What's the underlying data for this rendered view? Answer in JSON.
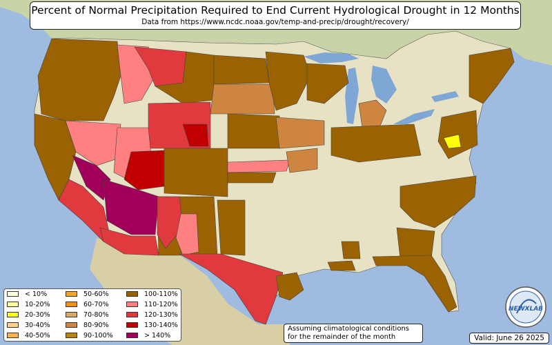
{
  "header": {
    "title": "Percent of Normal Precipitation Required to End Current Hydrological Drought in 12 Months",
    "subtitle": "Data from https://www.ncdc.noaa.gov/temp-and-precip/drought/recovery/"
  },
  "legend": {
    "items": [
      {
        "label": "< 10%",
        "color": "#ffffe0"
      },
      {
        "label": "10-20%",
        "color": "#ffff99"
      },
      {
        "label": "20-30%",
        "color": "#ffff00"
      },
      {
        "label": "30-40%",
        "color": "#ffd18c"
      },
      {
        "label": "40-50%",
        "color": "#ffb347"
      },
      {
        "label": "50-60%",
        "color": "#f5a623"
      },
      {
        "label": "60-70%",
        "color": "#f0901e"
      },
      {
        "label": "70-80%",
        "color": "#d9a76a"
      },
      {
        "label": "80-90%",
        "color": "#cd853f"
      },
      {
        "label": "90-100%",
        "color": "#b8860b"
      },
      {
        "label": "100-110%",
        "color": "#9a6200"
      },
      {
        "label": "110-120%",
        "color": "#ff8080"
      },
      {
        "label": "120-130%",
        "color": "#e0393e"
      },
      {
        "label": "130-140%",
        "color": "#c00000"
      },
      {
        "label": "> 140%",
        "color": "#a0005a"
      }
    ]
  },
  "note": {
    "line1": "Assuming climatological conditions",
    "line2": "for the remainder of the month"
  },
  "valid": "Valid: June 26 2025",
  "logo_text": "NEWXLAB",
  "colors": {
    "ocean": "#9fbbdf",
    "land": "#e8e2c4",
    "canada": "#c9d3a8",
    "mexico": "#d9cfa5",
    "lakes": "#7fa7d6"
  }
}
